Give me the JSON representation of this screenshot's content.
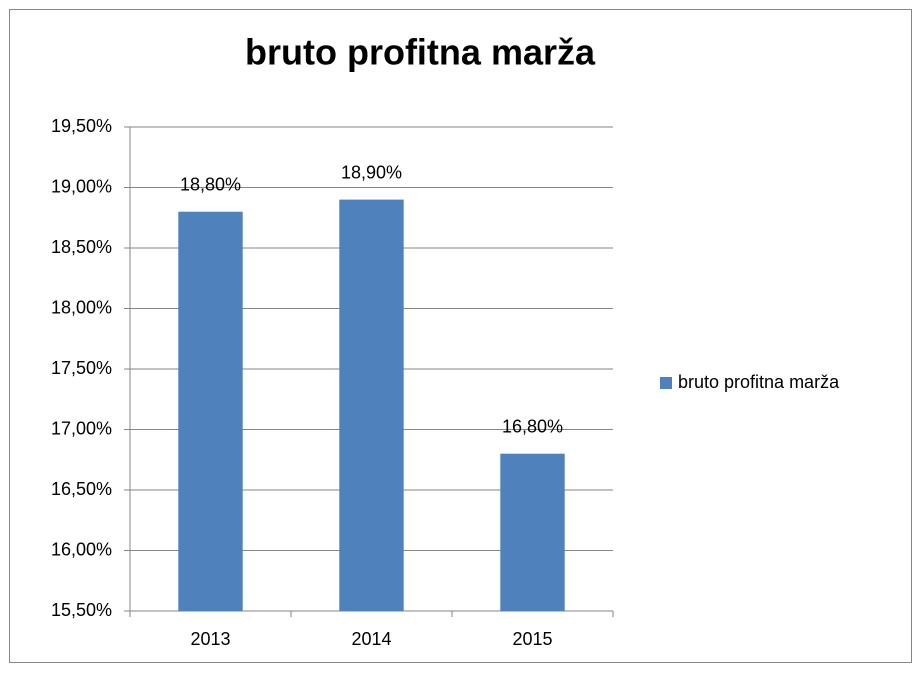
{
  "chart_data": {
    "type": "bar",
    "title": "bruto profitna marža",
    "categories": [
      "2013",
      "2014",
      "2015"
    ],
    "series": [
      {
        "name": "bruto profitna marža",
        "color": "#4f81bd",
        "values": [
          18.8,
          18.9,
          16.8
        ],
        "value_labels": [
          "18,80%",
          "18,90%",
          "16,80%"
        ]
      }
    ],
    "ylim": [
      15.5,
      19.5
    ],
    "yticks": [
      {
        "value": 15.5,
        "label": "15,50%"
      },
      {
        "value": 16,
        "label": "16,00%"
      },
      {
        "value": 16.5,
        "label": "16,50%"
      },
      {
        "value": 17,
        "label": "17,00%"
      },
      {
        "value": 17.5,
        "label": "17,50%"
      },
      {
        "value": 18,
        "label": "18,00%"
      },
      {
        "value": 18.5,
        "label": "18,50%"
      },
      {
        "value": 19,
        "label": "19,00%"
      },
      {
        "value": 19.5,
        "label": "19,50%"
      }
    ],
    "grid": true,
    "legend": "right"
  }
}
